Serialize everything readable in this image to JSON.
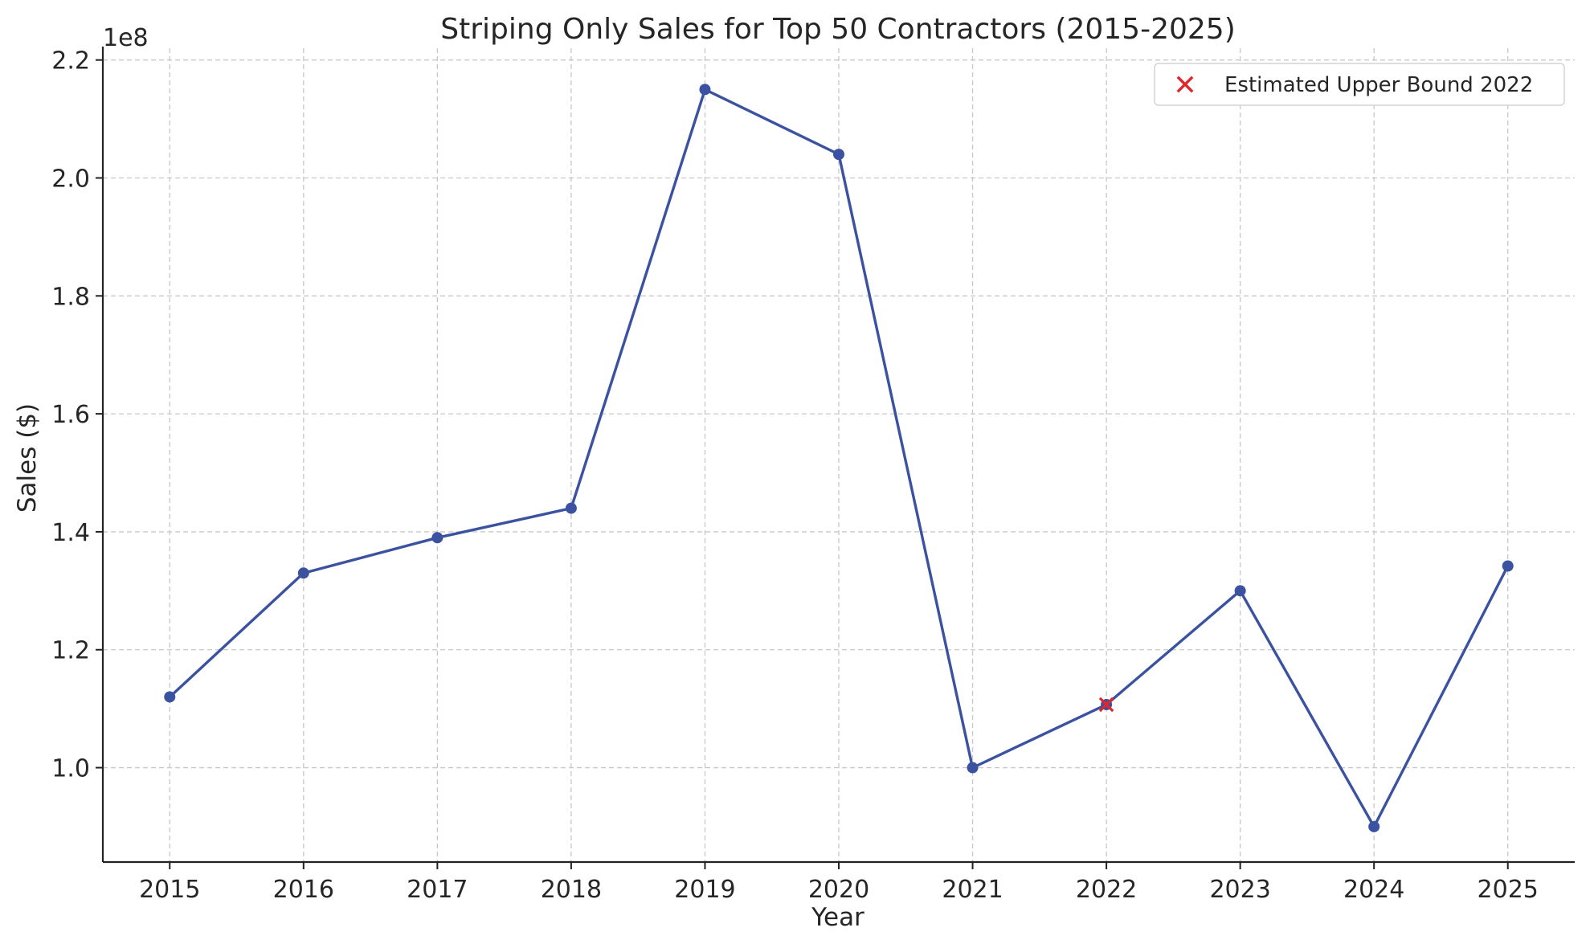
{
  "chart_data": {
    "type": "line",
    "title": "Striping Only Sales for Top 50 Contractors (2015-2025)",
    "xlabel": "Year",
    "ylabel": "Sales ($)",
    "y_offset_label": "1e8",
    "x": [
      2015,
      2016,
      2017,
      2018,
      2019,
      2020,
      2021,
      2022,
      2023,
      2024,
      2025
    ],
    "x_tick_labels": [
      "2015",
      "2016",
      "2017",
      "2018",
      "2019",
      "2020",
      "2021",
      "2022",
      "2023",
      "2024",
      "2025"
    ],
    "series": [
      {
        "values": [
          112000000,
          133000000,
          139000000,
          144000000,
          215000000,
          204000000,
          100000000,
          110700000,
          130000000,
          90000000,
          134200000
        ],
        "color": "#3b52a0",
        "marker": "circle"
      },
      {
        "name": "Estimated Upper Bound 2022",
        "type": "scatter",
        "marker": "x",
        "color": "#e0262a",
        "x": [
          2022
        ],
        "values": [
          110700000
        ]
      }
    ],
    "y_ticks": [
      100000000,
      120000000,
      140000000,
      160000000,
      180000000,
      200000000,
      220000000
    ],
    "y_tick_labels": [
      "1.0",
      "1.2",
      "1.4",
      "1.6",
      "1.8",
      "2.0",
      "2.2"
    ],
    "xlim": [
      2014.5,
      2025.5
    ],
    "ylim": [
      84000000,
      222000000
    ],
    "grid": true,
    "legend_placement": "top-right"
  }
}
